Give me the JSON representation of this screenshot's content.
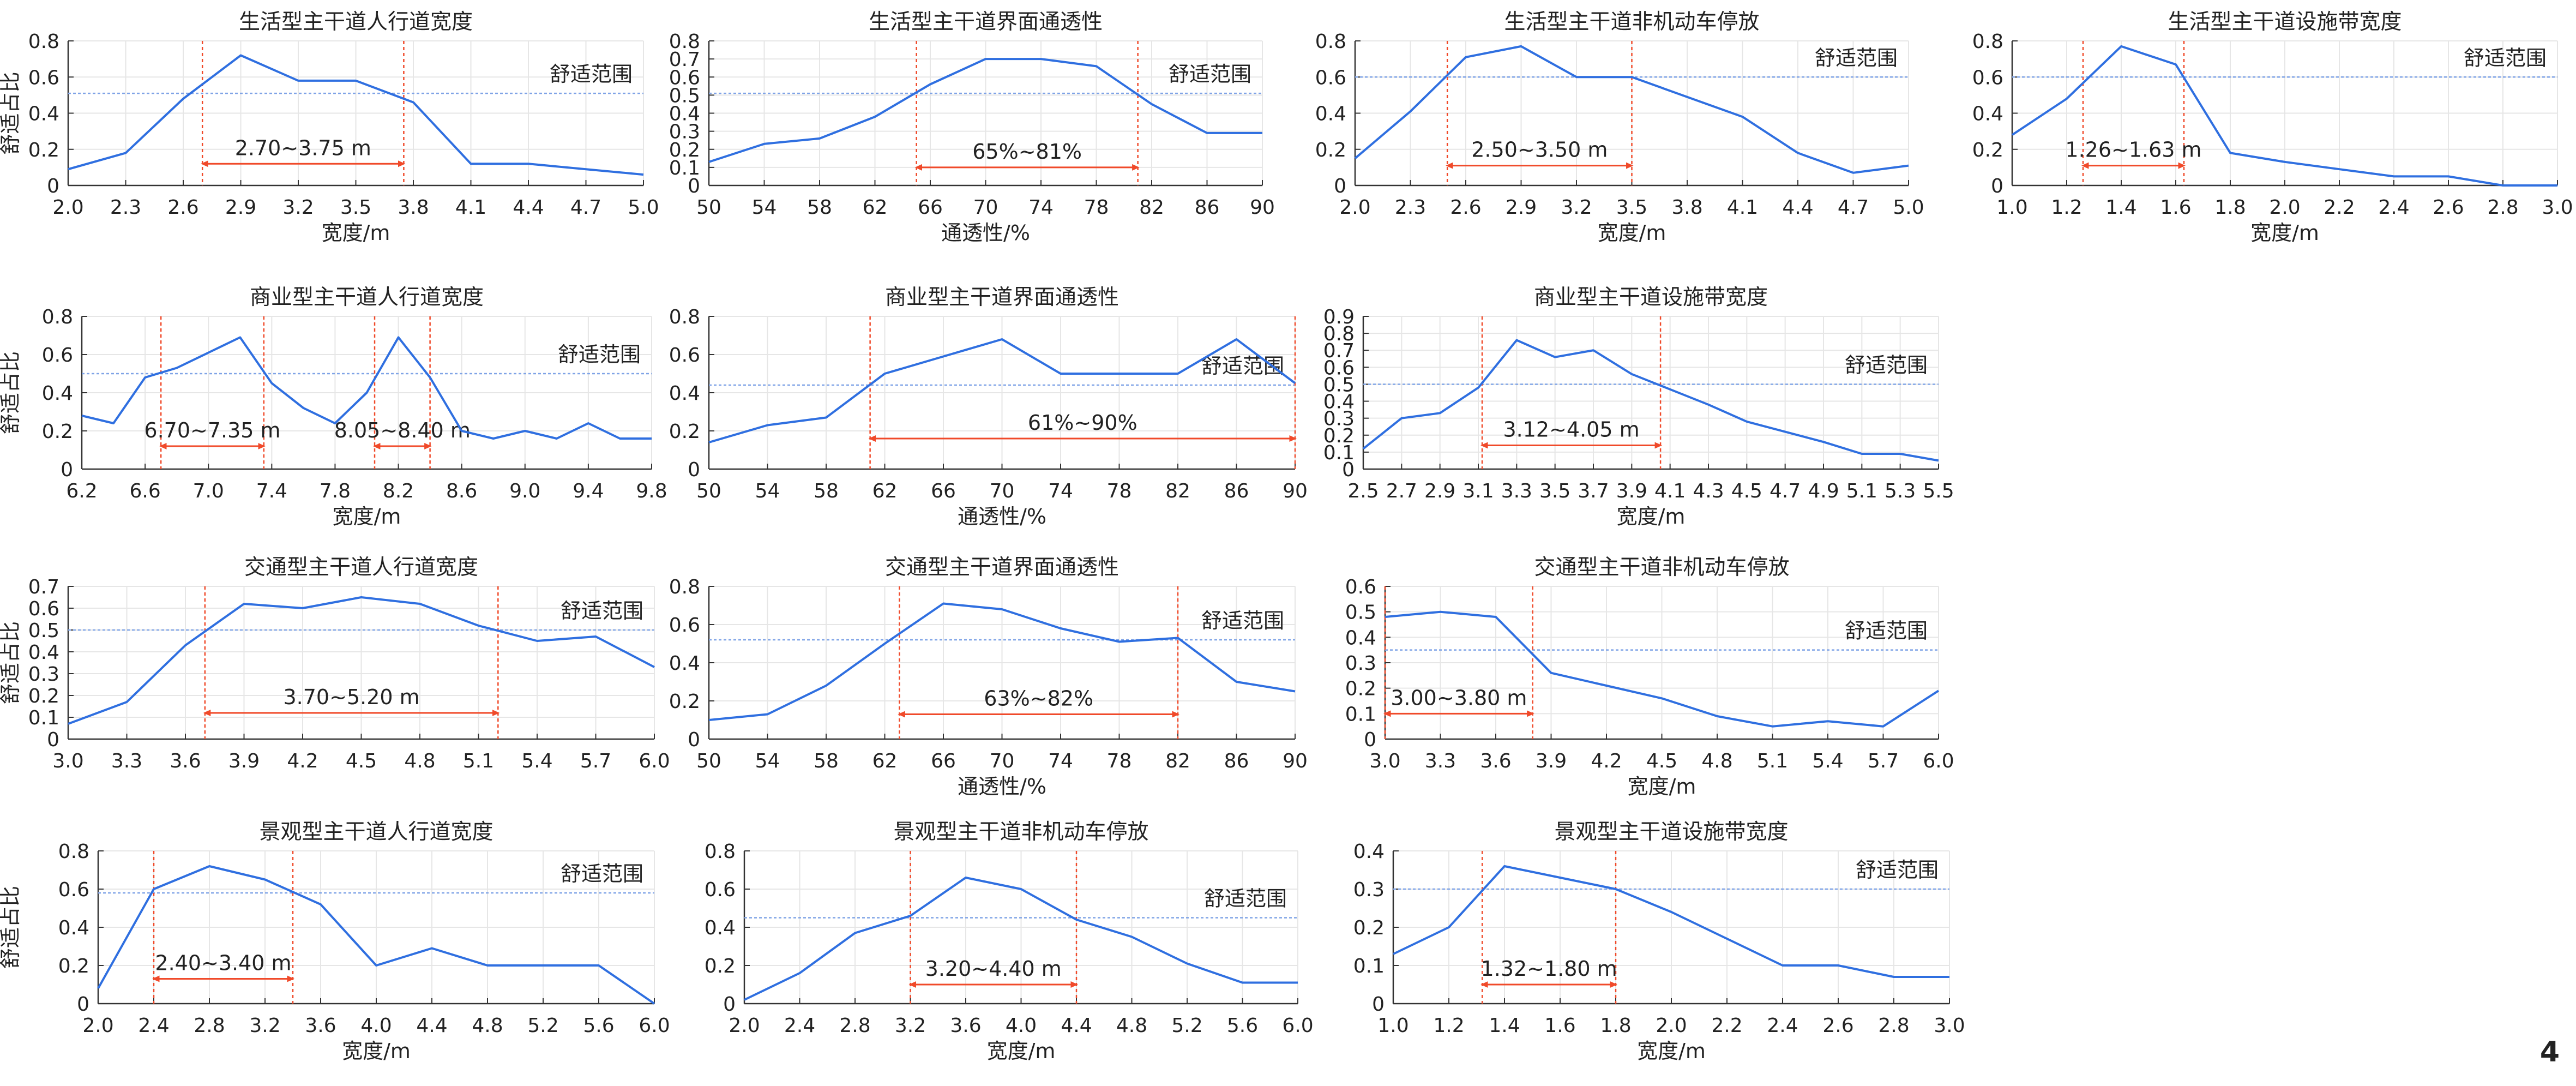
{
  "page": {
    "number": "4"
  },
  "chart_data": [
    {
      "type": "line",
      "title": "生活型主干道人行道宽度",
      "xlabel": "宽度/m",
      "ylabel": "舒适占比",
      "x": [
        2.0,
        2.3,
        2.6,
        2.9,
        3.2,
        3.5,
        3.8,
        4.1,
        4.4,
        4.7,
        5.0
      ],
      "y": [
        0.09,
        0.18,
        0.48,
        0.72,
        0.58,
        0.58,
        0.46,
        0.12,
        0.12,
        0.09,
        0.06
      ],
      "xlim": [
        2.0,
        5.0
      ],
      "ylim": [
        0,
        0.8
      ],
      "xticks": [
        "2.0",
        "2.3",
        "2.6",
        "2.9",
        "3.2",
        "3.5",
        "3.8",
        "4.1",
        "4.4",
        "4.7",
        "5.0"
      ],
      "yticks": [
        "0",
        "0.2",
        "0.4",
        "0.6",
        "0.8"
      ],
      "threshold": 0.51,
      "legend_label": "舒适范围",
      "ranges": [
        {
          "from": 2.7,
          "to": 3.75,
          "label": "2.70~3.75 m",
          "y": 0.12
        }
      ],
      "grid": true
    },
    {
      "type": "line",
      "title": "生活型主干道界面通透性",
      "xlabel": "通透性/%",
      "ylabel": "",
      "x": [
        50,
        54,
        58,
        62,
        66,
        70,
        74,
        78,
        82,
        86,
        90
      ],
      "y": [
        0.13,
        0.23,
        0.26,
        0.38,
        0.56,
        0.7,
        0.7,
        0.66,
        0.45,
        0.29,
        0.29
      ],
      "xlim": [
        50,
        90
      ],
      "ylim": [
        0,
        0.8
      ],
      "xticks": [
        "50",
        "54",
        "58",
        "62",
        "66",
        "70",
        "74",
        "78",
        "82",
        "86",
        "90"
      ],
      "yticks": [
        "0",
        "0.1",
        "0.2",
        "0.3",
        "0.4",
        "0.5",
        "0.6",
        "0.7",
        "0.8"
      ],
      "threshold": 0.51,
      "legend_label": "舒适范围",
      "ranges": [
        {
          "from": 65,
          "to": 81,
          "label": "65%~81%",
          "y": 0.1
        }
      ],
      "grid": true
    },
    {
      "type": "line",
      "title": "生活型主干道非机动车停放",
      "xlabel": "宽度/m",
      "ylabel": "",
      "x": [
        2.0,
        2.3,
        2.6,
        2.9,
        3.2,
        3.5,
        3.8,
        4.1,
        4.4,
        4.7,
        5.0
      ],
      "y": [
        0.15,
        0.41,
        0.71,
        0.77,
        0.6,
        0.6,
        0.49,
        0.38,
        0.18,
        0.07,
        0.11
      ],
      "xlim": [
        2.0,
        5.0
      ],
      "ylim": [
        0,
        0.8
      ],
      "xticks": [
        "2.0",
        "2.3",
        "2.6",
        "2.9",
        "3.2",
        "3.5",
        "3.8",
        "4.1",
        "4.4",
        "4.7",
        "5.0"
      ],
      "yticks": [
        "0",
        "0.2",
        "0.4",
        "0.6",
        "0.8"
      ],
      "threshold": 0.6,
      "legend_label": "舒适范围",
      "ranges": [
        {
          "from": 2.5,
          "to": 3.5,
          "label": "2.50~3.50 m",
          "y": 0.11
        }
      ],
      "grid": true
    },
    {
      "type": "line",
      "title": "生活型主干道设施带宽度",
      "xlabel": "宽度/m",
      "ylabel": "",
      "x": [
        1.0,
        1.2,
        1.4,
        1.6,
        1.8,
        2.0,
        2.2,
        2.4,
        2.6,
        2.8,
        3.0
      ],
      "y": [
        0.28,
        0.48,
        0.77,
        0.67,
        0.18,
        0.13,
        0.09,
        0.05,
        0.05,
        0.0,
        0.0
      ],
      "xlim": [
        1.0,
        3.0
      ],
      "ylim": [
        0,
        0.8
      ],
      "xticks": [
        "1.0",
        "1.2",
        "1.4",
        "1.6",
        "1.8",
        "2.0",
        "2.2",
        "2.4",
        "2.6",
        "2.8",
        "3.0"
      ],
      "yticks": [
        "0",
        "0.2",
        "0.4",
        "0.6",
        "0.8"
      ],
      "threshold": 0.6,
      "legend_label": "舒适范围",
      "ranges": [
        {
          "from": 1.26,
          "to": 1.63,
          "label": "1.26~1.63 m",
          "y": 0.11
        }
      ],
      "grid": true
    },
    {
      "type": "line",
      "title": "商业型主干道人行道宽度",
      "xlabel": "宽度/m",
      "ylabel": "舒适占比",
      "x": [
        6.2,
        6.4,
        6.6,
        6.8,
        7.0,
        7.2,
        7.4,
        7.6,
        7.8,
        8.0,
        8.2,
        8.4,
        8.6,
        8.8,
        9.0,
        9.2,
        9.4,
        9.6,
        9.8
      ],
      "y": [
        0.28,
        0.24,
        0.48,
        0.53,
        0.61,
        0.69,
        0.45,
        0.32,
        0.24,
        0.4,
        0.69,
        0.48,
        0.2,
        0.16,
        0.2,
        0.16,
        0.24,
        0.16,
        0.16
      ],
      "xlim": [
        6.2,
        9.8
      ],
      "ylim": [
        0,
        0.8
      ],
      "xticks": [
        "6.2",
        "6.6",
        "7.0",
        "7.4",
        "7.8",
        "8.2",
        "8.6",
        "9.0",
        "9.4",
        "9.8"
      ],
      "yticks": [
        "0",
        "0.2",
        "0.4",
        "0.6",
        "0.8"
      ],
      "threshold": 0.5,
      "legend_label": "舒适范围",
      "ranges": [
        {
          "from": 6.7,
          "to": 7.35,
          "label": "6.70~7.35 m",
          "y": 0.12
        },
        {
          "from": 8.05,
          "to": 8.4,
          "label": "8.05~8.40 m",
          "y": 0.12
        }
      ],
      "grid": true
    },
    {
      "type": "line",
      "title": "商业型主干道界面通透性",
      "xlabel": "通透性/%",
      "ylabel": "",
      "x": [
        50,
        54,
        58,
        62,
        66,
        70,
        74,
        78,
        82,
        86,
        90
      ],
      "y": [
        0.14,
        0.23,
        0.27,
        0.5,
        0.59,
        0.68,
        0.5,
        0.5,
        0.5,
        0.68,
        0.45
      ],
      "xlim": [
        50,
        90
      ],
      "ylim": [
        0,
        0.8
      ],
      "xticks": [
        "50",
        "54",
        "58",
        "62",
        "66",
        "70",
        "74",
        "78",
        "82",
        "86",
        "90"
      ],
      "yticks": [
        "0",
        "0.2",
        "0.4",
        "0.6",
        "0.8"
      ],
      "threshold": 0.44,
      "legend_label": "舒适范围",
      "ranges": [
        {
          "from": 61,
          "to": 90,
          "label": "61%~90%",
          "y": 0.16
        }
      ],
      "grid": true
    },
    {
      "type": "line",
      "title": "商业型主干道设施带宽度",
      "xlabel": "宽度/m",
      "ylabel": "",
      "x": [
        2.5,
        2.7,
        2.9,
        3.1,
        3.3,
        3.5,
        3.7,
        3.9,
        4.1,
        4.3,
        4.5,
        4.7,
        4.9,
        5.1,
        5.3,
        5.5
      ],
      "y": [
        0.12,
        0.3,
        0.33,
        0.48,
        0.76,
        0.66,
        0.7,
        0.56,
        0.47,
        0.38,
        0.28,
        0.22,
        0.16,
        0.09,
        0.09,
        0.05
      ],
      "xlim": [
        2.5,
        5.5
      ],
      "ylim": [
        0,
        0.9
      ],
      "xticks": [
        "2.5",
        "2.7",
        "2.9",
        "3.1",
        "3.3",
        "3.5",
        "3.7",
        "3.9",
        "4.1",
        "4.3",
        "4.5",
        "4.7",
        "4.9",
        "5.1",
        "5.3",
        "5.5"
      ],
      "yticks": [
        "0",
        "0.1",
        "0.2",
        "0.3",
        "0.4",
        "0.5",
        "0.6",
        "0.7",
        "0.8",
        "0.9"
      ],
      "threshold": 0.5,
      "legend_label": "舒适范围",
      "ranges": [
        {
          "from": 3.12,
          "to": 4.05,
          "label": "3.12~4.05 m",
          "y": 0.14
        }
      ],
      "grid": true
    },
    {
      "type": "line",
      "title": "交通型主干道人行道宽度",
      "xlabel": "",
      "ylabel": "舒适占比",
      "x": [
        3.0,
        3.3,
        3.6,
        3.9,
        4.2,
        4.5,
        4.8,
        5.1,
        5.4,
        5.7,
        6.0
      ],
      "y": [
        0.07,
        0.17,
        0.43,
        0.62,
        0.6,
        0.65,
        0.62,
        0.52,
        0.45,
        0.47,
        0.33
      ],
      "xlim": [
        3.0,
        6.0
      ],
      "ylim": [
        0,
        0.7
      ],
      "xticks": [
        "3.0",
        "3.3",
        "3.6",
        "3.9",
        "4.2",
        "4.5",
        "4.8",
        "5.1",
        "5.4",
        "5.7",
        "6.0"
      ],
      "yticks": [
        "0",
        "0.1",
        "0.2",
        "0.3",
        "0.4",
        "0.5",
        "0.6",
        "0.7"
      ],
      "threshold": 0.5,
      "legend_label": "舒适范围",
      "ranges": [
        {
          "from": 3.7,
          "to": 5.2,
          "label": "3.70~5.20 m",
          "y": 0.12
        }
      ],
      "grid": true
    },
    {
      "type": "line",
      "title": "交通型主干道界面通透性",
      "xlabel": "通透性/%",
      "ylabel": "",
      "x": [
        50,
        54,
        58,
        62,
        66,
        70,
        74,
        78,
        82,
        86,
        90
      ],
      "y": [
        0.1,
        0.13,
        0.28,
        0.5,
        0.71,
        0.68,
        0.58,
        0.51,
        0.53,
        0.3,
        0.25
      ],
      "xlim": [
        50,
        90
      ],
      "ylim": [
        0,
        0.8
      ],
      "xticks": [
        "50",
        "54",
        "58",
        "62",
        "66",
        "70",
        "74",
        "78",
        "82",
        "86",
        "90"
      ],
      "yticks": [
        "0",
        "0.2",
        "0.4",
        "0.6",
        "0.8"
      ],
      "threshold": 0.52,
      "legend_label": "舒适范围",
      "ranges": [
        {
          "from": 63,
          "to": 82,
          "label": "63%~82%",
          "y": 0.13
        }
      ],
      "grid": true
    },
    {
      "type": "line",
      "title": "交通型主干道非机动车停放",
      "xlabel": "宽度/m",
      "ylabel": "",
      "x": [
        3.0,
        3.3,
        3.6,
        3.9,
        4.2,
        4.5,
        4.8,
        5.1,
        5.4,
        5.7,
        6.0
      ],
      "y": [
        0.48,
        0.5,
        0.48,
        0.26,
        0.21,
        0.16,
        0.09,
        0.05,
        0.07,
        0.05,
        0.19
      ],
      "xlim": [
        3.0,
        6.0
      ],
      "ylim": [
        0,
        0.6
      ],
      "xticks": [
        "3.0",
        "3.3",
        "3.6",
        "3.9",
        "4.2",
        "4.5",
        "4.8",
        "5.1",
        "5.4",
        "5.7",
        "6.0"
      ],
      "yticks": [
        "0",
        "0.1",
        "0.2",
        "0.3",
        "0.4",
        "0.5",
        "0.6"
      ],
      "threshold": 0.35,
      "legend_label": "舒适范围",
      "ranges": [
        {
          "from": 3.0,
          "to": 3.8,
          "label": "3.00~3.80 m",
          "y": 0.1
        }
      ],
      "grid": true
    },
    {
      "type": "line",
      "title": "景观型主干道人行道宽度",
      "xlabel": "宽度/m",
      "ylabel": "舒适占比",
      "x": [
        2.0,
        2.4,
        2.8,
        3.2,
        3.6,
        4.0,
        4.4,
        4.8,
        5.2,
        5.6,
        6.0
      ],
      "y": [
        0.08,
        0.6,
        0.72,
        0.65,
        0.52,
        0.2,
        0.29,
        0.2,
        0.2,
        0.2,
        0.0
      ],
      "xlim": [
        2.0,
        6.0
      ],
      "ylim": [
        0,
        0.8
      ],
      "xticks": [
        "2.0",
        "2.4",
        "2.8",
        "3.2",
        "3.6",
        "4.0",
        "4.4",
        "4.8",
        "5.2",
        "5.6",
        "6.0"
      ],
      "yticks": [
        "0",
        "0.2",
        "0.4",
        "0.6",
        "0.8"
      ],
      "threshold": 0.58,
      "legend_label": "舒适范围",
      "ranges": [
        {
          "from": 2.4,
          "to": 3.4,
          "label": "2.40~3.40 m",
          "y": 0.13
        }
      ],
      "grid": true
    },
    {
      "type": "line",
      "title": "景观型主干道非机动车停放",
      "xlabel": "宽度/m",
      "ylabel": "",
      "x": [
        2.0,
        2.4,
        2.8,
        3.2,
        3.6,
        4.0,
        4.4,
        4.8,
        5.2,
        5.6,
        6.0
      ],
      "y": [
        0.02,
        0.16,
        0.37,
        0.46,
        0.66,
        0.6,
        0.44,
        0.35,
        0.21,
        0.11,
        0.11
      ],
      "xlim": [
        2.0,
        6.0
      ],
      "ylim": [
        0,
        0.8
      ],
      "xticks": [
        "2.0",
        "2.4",
        "2.8",
        "3.2",
        "3.6",
        "4.0",
        "4.4",
        "4.8",
        "5.2",
        "5.6",
        "6.0"
      ],
      "yticks": [
        "0",
        "0.2",
        "0.4",
        "0.6",
        "0.8"
      ],
      "threshold": 0.45,
      "legend_label": "舒适范围",
      "ranges": [
        {
          "from": 3.2,
          "to": 4.4,
          "label": "3.20~4.40 m",
          "y": 0.1
        }
      ],
      "grid": true
    },
    {
      "type": "line",
      "title": "景观型主干道设施带宽度",
      "xlabel": "宽度/m",
      "ylabel": "",
      "x": [
        1.0,
        1.2,
        1.4,
        1.6,
        1.8,
        2.0,
        2.2,
        2.4,
        2.6,
        2.8,
        3.0
      ],
      "y": [
        0.13,
        0.2,
        0.36,
        0.33,
        0.3,
        0.24,
        0.17,
        0.1,
        0.1,
        0.07,
        0.07
      ],
      "xlim": [
        1.0,
        3.0
      ],
      "ylim": [
        0,
        0.4
      ],
      "xticks": [
        "1.0",
        "1.2",
        "1.4",
        "1.6",
        "1.8",
        "2.0",
        "2.2",
        "2.4",
        "2.6",
        "2.8",
        "3.0"
      ],
      "yticks": [
        "0",
        "0.1",
        "0.2",
        "0.3",
        "0.4"
      ],
      "threshold": 0.3,
      "legend_label": "舒适范围",
      "ranges": [
        {
          "from": 1.32,
          "to": 1.8,
          "label": "1.32~1.80 m",
          "y": 0.05
        }
      ],
      "grid": true
    }
  ],
  "colors": {
    "line": "#2f6fe0",
    "threshold": "#7fa3e6",
    "range": "#f04a2a",
    "grid": "#e6e6e6",
    "text": "#222222"
  }
}
